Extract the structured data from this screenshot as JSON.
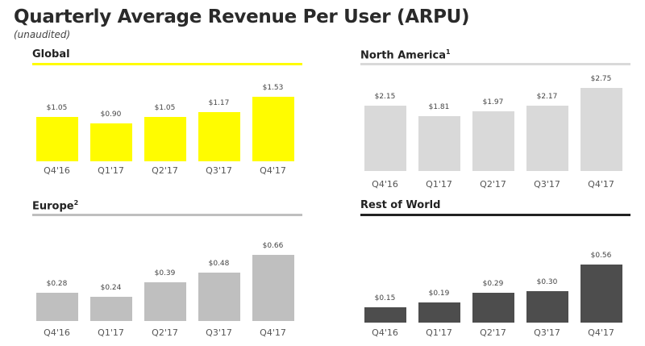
{
  "title": "Quarterly Average Revenue Per User (ARPU)",
  "subtitle": "(unaudited)",
  "chart_data": [
    {
      "type": "bar",
      "title": "Global",
      "footnote": "",
      "categories": [
        "Q4'16",
        "Q1'17",
        "Q2'17",
        "Q3'17",
        "Q4'17"
      ],
      "values": [
        1.05,
        0.9,
        1.05,
        1.17,
        1.53
      ],
      "value_labels": [
        "$1.05",
        "$0.90",
        "$1.05",
        "$1.17",
        "$1.53"
      ],
      "color": "#FFFC00",
      "line_color": "#FFFC00"
    },
    {
      "type": "bar",
      "title": "North America",
      "footnote": "1",
      "categories": [
        "Q4'16",
        "Q1'17",
        "Q2'17",
        "Q3'17",
        "Q4'17"
      ],
      "values": [
        2.15,
        1.81,
        1.97,
        2.17,
        2.75
      ],
      "value_labels": [
        "$2.15",
        "$1.81",
        "$1.97",
        "$2.17",
        "$2.75"
      ],
      "color": "#D9D9D9",
      "line_color": "#D9D9D9"
    },
    {
      "type": "bar",
      "title": "Europe",
      "footnote": "2",
      "categories": [
        "Q4'16",
        "Q1'17",
        "Q2'17",
        "Q3'17",
        "Q4'17"
      ],
      "values": [
        0.28,
        0.24,
        0.39,
        0.48,
        0.66
      ],
      "value_labels": [
        "$0.28",
        "$0.24",
        "$0.39",
        "$0.48",
        "$0.66"
      ],
      "color": "#BFBFBF",
      "line_color": "#BFBFBF"
    },
    {
      "type": "bar",
      "title": "Rest of World",
      "footnote": "",
      "categories": [
        "Q4'16",
        "Q1'17",
        "Q2'17",
        "Q3'17",
        "Q4'17"
      ],
      "values": [
        0.15,
        0.19,
        0.29,
        0.3,
        0.56
      ],
      "value_labels": [
        "$0.15",
        "$0.19",
        "$0.29",
        "$0.30",
        "$0.56"
      ],
      "color": "#4D4D4D",
      "line_color": "#222222"
    }
  ]
}
